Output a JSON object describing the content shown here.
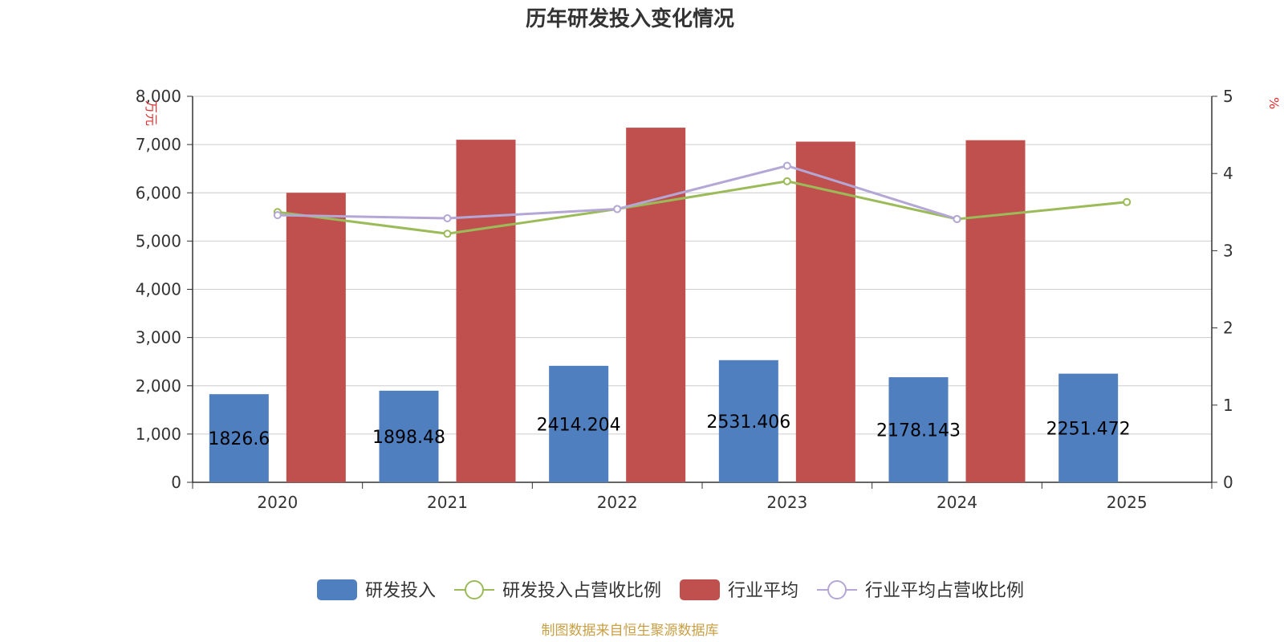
{
  "chart_data": {
    "type": "bar",
    "title": "历年研发投入变化情况",
    "categories": [
      "2020",
      "2021",
      "2022",
      "2023",
      "2024",
      "2025"
    ],
    "y_left": {
      "unit": "万元",
      "ticks": [
        "0",
        "1,000",
        "2,000",
        "3,000",
        "4,000",
        "5,000",
        "6,000",
        "7,000",
        "8,000"
      ],
      "ylim": [
        0,
        8000
      ]
    },
    "y_right": {
      "unit": "%",
      "ticks": [
        "0",
        "1",
        "2",
        "3",
        "4",
        "5"
      ],
      "ylim": [
        0,
        5
      ]
    },
    "series": [
      {
        "name": "研发投入",
        "type": "bar",
        "axis": "left",
        "color": "#4f7fbf",
        "values": [
          1826.6,
          1898.48,
          2414.204,
          2531.406,
          2178.143,
          2251.472
        ],
        "labels": [
          "1826.6",
          "1898.48",
          "2414.204",
          "2531.406",
          "2178.143",
          "2251.472"
        ]
      },
      {
        "name": "研发投入占营收比例",
        "type": "line",
        "axis": "right",
        "color": "#9bbb59",
        "values": [
          3.5,
          3.22,
          3.54,
          3.9,
          3.41,
          3.63
        ]
      },
      {
        "name": "行业平均",
        "type": "bar",
        "axis": "left",
        "color": "#c0504d",
        "values": [
          6000,
          7100,
          7350,
          7060,
          7090,
          null
        ]
      },
      {
        "name": "行业平均占营收比例",
        "type": "line",
        "axis": "right",
        "color": "#b4a7d6",
        "values": [
          3.46,
          3.42,
          3.54,
          4.1,
          3.41,
          null
        ]
      }
    ],
    "grid": true,
    "legend": "bottom-center"
  },
  "source": "制图数据来自恒生聚源数据库"
}
